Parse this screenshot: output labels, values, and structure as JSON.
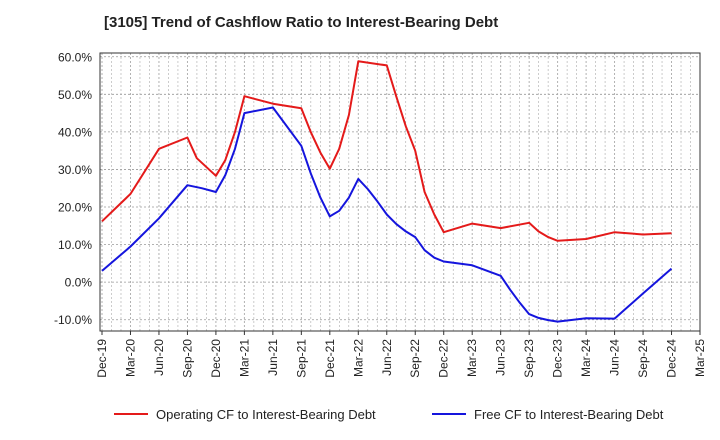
{
  "chart_data": {
    "type": "line",
    "title": "[3105]  Trend of Cashflow Ratio to Interest-Bearing Debt",
    "xlabel": "",
    "ylabel": "",
    "ylim": [
      -13,
      61
    ],
    "yticks": [
      60,
      50,
      40,
      30,
      20,
      10,
      0,
      -10
    ],
    "ytick_labels": [
      "60.0%",
      "50.0%",
      "40.0%",
      "30.0%",
      "20.0%",
      "10.0%",
      "0.0%",
      "-10.0%"
    ],
    "x_tick_labels": [
      "Dec-19",
      "Mar-20",
      "Jun-20",
      "Sep-20",
      "Dec-20",
      "Mar-21",
      "Jun-21",
      "Sep-21",
      "Dec-21",
      "Mar-22",
      "Jun-22",
      "Sep-22",
      "Dec-22",
      "Mar-23",
      "Jun-23",
      "Sep-23",
      "Dec-23",
      "Mar-24",
      "Jun-24",
      "Sep-24",
      "Dec-24",
      "Mar-25"
    ],
    "grid": true,
    "legend_position": "bottom",
    "series": [
      {
        "name": "Operating CF to Interest-Bearing Debt",
        "color": "#e41a1a",
        "points": [
          [
            0,
            16.2
          ],
          [
            1,
            23.5
          ],
          [
            2,
            35.5
          ],
          [
            3,
            38.5
          ],
          [
            3.33,
            33.0
          ],
          [
            4,
            28.3
          ],
          [
            4.33,
            32.5
          ],
          [
            4.67,
            40.0
          ],
          [
            5,
            49.5
          ],
          [
            6,
            47.5
          ],
          [
            7,
            46.3
          ],
          [
            7.33,
            40.0
          ],
          [
            7.67,
            34.5
          ],
          [
            8,
            30.2
          ],
          [
            8.33,
            35.5
          ],
          [
            8.67,
            44.5
          ],
          [
            9,
            58.8
          ],
          [
            10,
            57.7
          ],
          [
            10.33,
            49.5
          ],
          [
            10.67,
            41.5
          ],
          [
            11,
            35.0
          ],
          [
            11.33,
            24.0
          ],
          [
            11.67,
            18.0
          ],
          [
            12,
            13.3
          ],
          [
            13,
            15.6
          ],
          [
            14,
            14.4
          ],
          [
            15,
            15.8
          ],
          [
            15.33,
            13.5
          ],
          [
            15.67,
            12.0
          ],
          [
            16,
            11.0
          ],
          [
            17,
            11.5
          ],
          [
            18,
            13.3
          ],
          [
            19,
            12.7
          ],
          [
            20,
            13.0
          ]
        ]
      },
      {
        "name": "Free CF to Interest-Bearing Debt",
        "color": "#1515dd",
        "points": [
          [
            0,
            3.0
          ],
          [
            1,
            9.5
          ],
          [
            2,
            17.0
          ],
          [
            3,
            25.8
          ],
          [
            3.5,
            25.0
          ],
          [
            4,
            24.0
          ],
          [
            4.33,
            28.5
          ],
          [
            4.67,
            35.5
          ],
          [
            5,
            45.0
          ],
          [
            6,
            46.5
          ],
          [
            7,
            36.3
          ],
          [
            7.33,
            29.0
          ],
          [
            7.67,
            22.5
          ],
          [
            8,
            17.5
          ],
          [
            8.33,
            19.0
          ],
          [
            8.67,
            22.5
          ],
          [
            9,
            27.5
          ],
          [
            9.33,
            24.8
          ],
          [
            9.67,
            21.5
          ],
          [
            10,
            18.0
          ],
          [
            10.33,
            15.5
          ],
          [
            10.67,
            13.5
          ],
          [
            11,
            12.0
          ],
          [
            11.33,
            8.5
          ],
          [
            11.67,
            6.5
          ],
          [
            12,
            5.5
          ],
          [
            13,
            4.5
          ],
          [
            14,
            1.7
          ],
          [
            14.33,
            -2.0
          ],
          [
            14.67,
            -5.5
          ],
          [
            15,
            -8.5
          ],
          [
            15.33,
            -9.5
          ],
          [
            15.67,
            -10.1
          ],
          [
            16,
            -10.5
          ],
          [
            17,
            -9.6
          ],
          [
            18,
            -9.7
          ],
          [
            18.33,
            -7.5
          ],
          [
            19,
            -3.0
          ],
          [
            20,
            3.6
          ]
        ]
      }
    ]
  }
}
